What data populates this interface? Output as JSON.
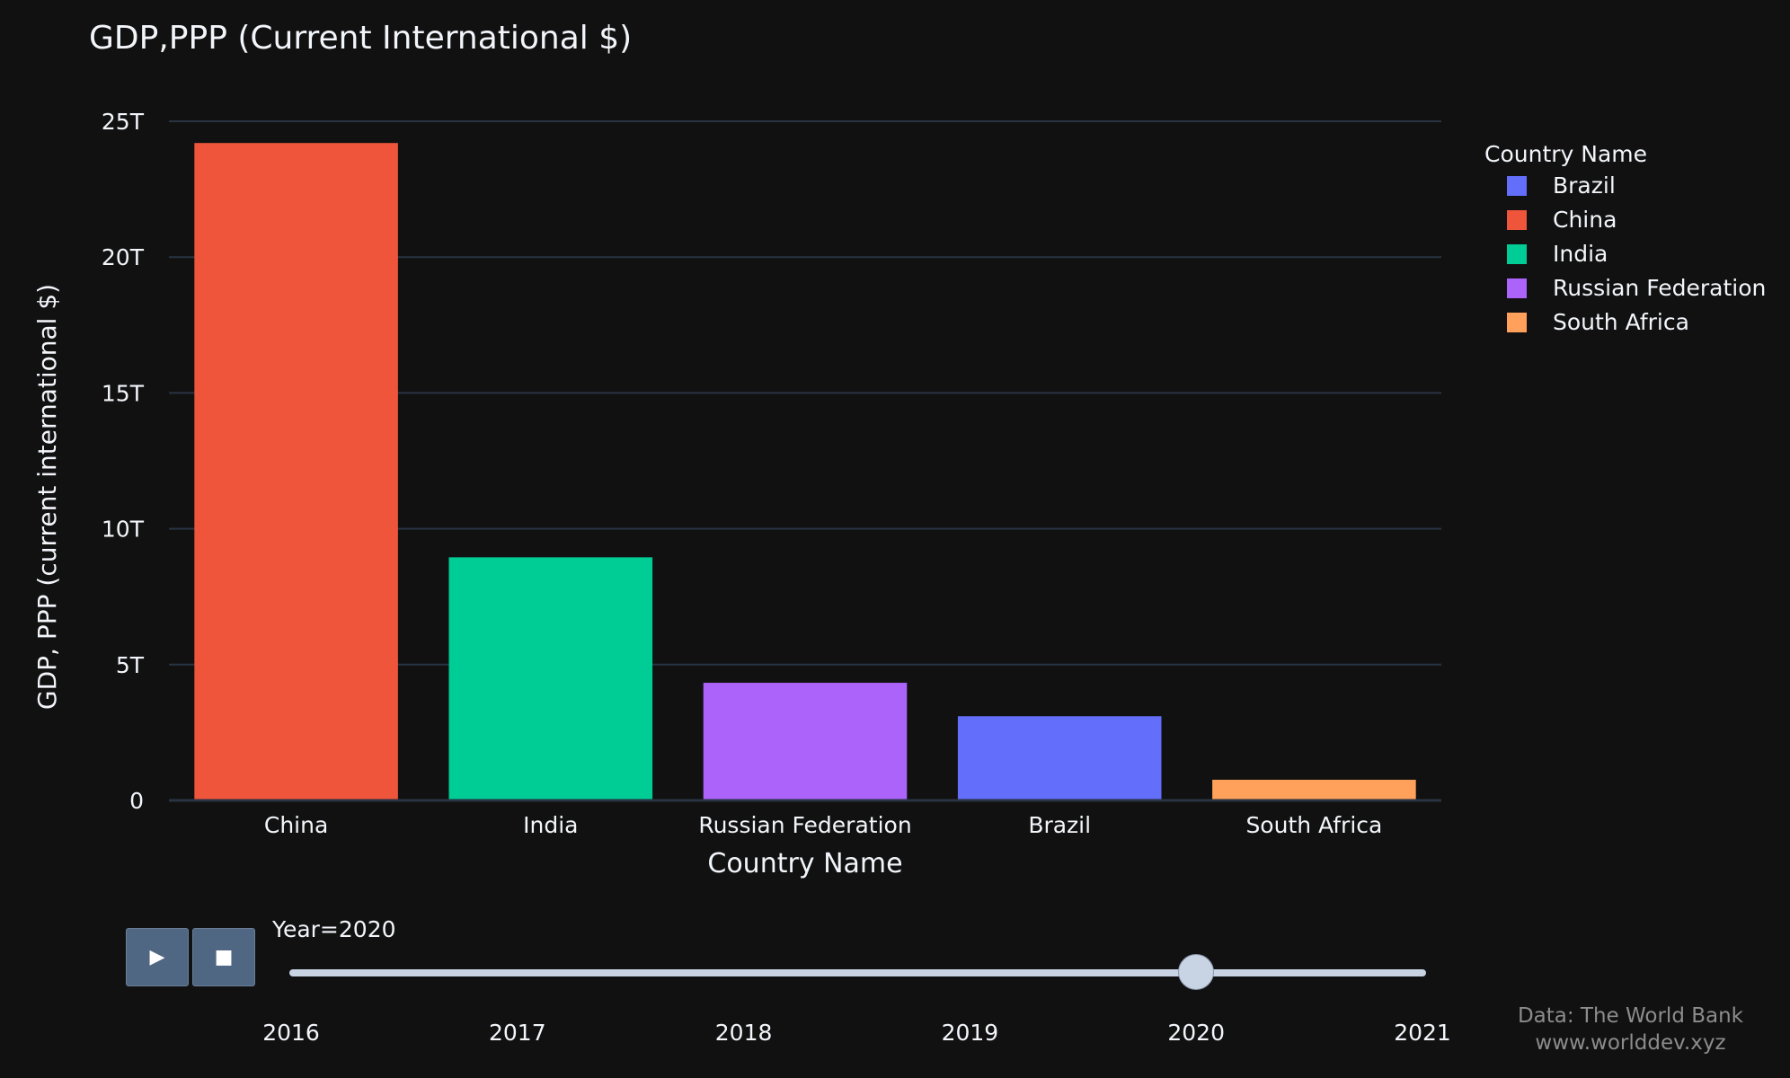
{
  "chart_data": {
    "type": "bar",
    "title": "GDP,PPP (Current International $)",
    "xlabel": "Country Name",
    "ylabel": "GDP, PPP (current international $)",
    "categories": [
      "China",
      "India",
      "Russian Federation",
      "Brazil",
      "South Africa"
    ],
    "values": [
      24.2,
      8.95,
      4.33,
      3.1,
      0.76
    ],
    "unit": "T",
    "ylim": [
      0,
      25
    ],
    "yticks": [
      {
        "value": 0,
        "label": "0"
      },
      {
        "value": 5,
        "label": "5T"
      },
      {
        "value": 10,
        "label": "10T"
      },
      {
        "value": 15,
        "label": "15T"
      },
      {
        "value": 20,
        "label": "20T"
      },
      {
        "value": 25,
        "label": "25T"
      }
    ],
    "colors": {
      "Brazil": "#636efa",
      "China": "#ef553b",
      "India": "#00cc96",
      "Russian Federation": "#ab63fa",
      "South Africa": "#ffa15a"
    },
    "grid": true,
    "legend_placement": "top-right"
  },
  "legend": {
    "title": "Country Name",
    "items": [
      {
        "label": "Brazil",
        "color": "#636efa"
      },
      {
        "label": "China",
        "color": "#ef553b"
      },
      {
        "label": "India",
        "color": "#00cc96"
      },
      {
        "label": "Russian Federation",
        "color": "#ab63fa"
      },
      {
        "label": "South Africa",
        "color": "#ffa15a"
      }
    ]
  },
  "animation": {
    "play_icon": "play-icon",
    "stop_icon": "stop-icon",
    "slider_prefix": "Year=",
    "current_year": "2020",
    "years": [
      "2016",
      "2017",
      "2018",
      "2019",
      "2020",
      "2021"
    ]
  },
  "source": {
    "line1": "Data: The World Bank",
    "line2": "www.worlddev.xyz"
  },
  "colors": {
    "background": "#111111",
    "grid": "#283442",
    "text": "#f2f5fa",
    "button": "#506784",
    "slider": "#c8d3e3"
  }
}
